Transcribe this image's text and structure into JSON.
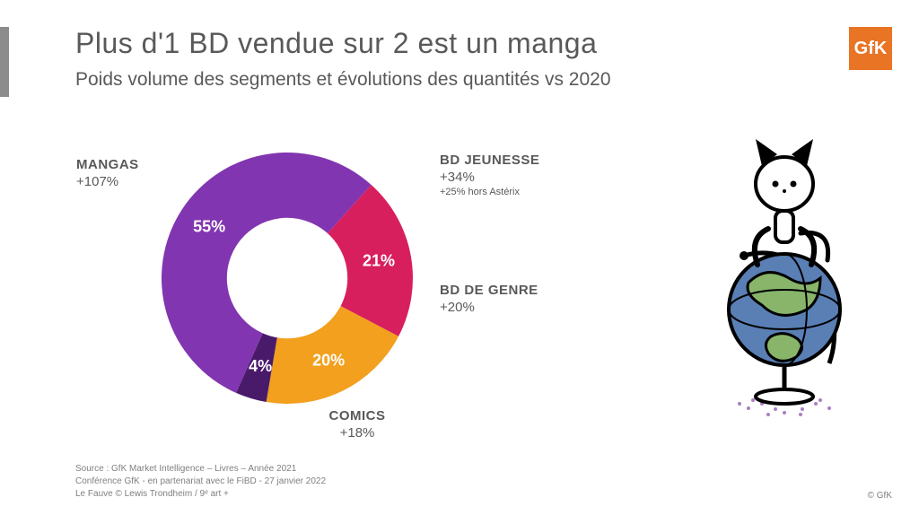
{
  "header": {
    "title": "Plus d'1 BD vendue sur 2 est un manga",
    "subtitle": "Poids volume des segments et évolutions des quantités vs 2020"
  },
  "logo": {
    "text": "GfK",
    "bg": "#e87424",
    "fg": "#ffffff"
  },
  "chart": {
    "type": "donut",
    "inner_radius_ratio": 0.48,
    "background": "#ffffff",
    "value_label_color": "#ffffff",
    "value_label_fontsize": 18,
    "value_label_fontweight": 700,
    "segments": [
      {
        "key": "jeunesse",
        "label": "BD JEUNESSE",
        "value": 21,
        "color": "#d81f5e",
        "growth": "+34%",
        "note": "+25% hors Astérix"
      },
      {
        "key": "genre",
        "label": "BD DE GENRE",
        "value": 20,
        "color": "#f2a01e",
        "growth": "+20%"
      },
      {
        "key": "comics",
        "label": "COMICS",
        "value": 4,
        "color": "#4a1a6a",
        "growth": "+18%"
      },
      {
        "key": "mangas",
        "label": "MANGAS",
        "value": 55,
        "color": "#8235b0",
        "growth": "+107%"
      }
    ],
    "start_angle_deg": -48,
    "gap_deg": 0
  },
  "segment_label_style": {
    "title_fontsize": 15,
    "title_fontweight": 700,
    "growth_fontsize": 15,
    "note_fontsize": 11,
    "color": "#595959"
  },
  "footer": {
    "line1": "Source : GfK Market Intelligence – Livres – Année 2021",
    "line2": "Conférence GfK - en partenariat avec le FiBD - 27 janvier 2022",
    "line3": "Le Fauve © Lewis Trondheim / 9ᵉ art +",
    "copyright": "© GfK"
  },
  "mascot": {
    "globe_fill": "#5a7fb5",
    "globe_land": "#88b56a",
    "stand_color": "#000000",
    "cat_body": "#ffffff",
    "cat_stroke": "#000000",
    "shadow_color": "#a97fc4"
  }
}
